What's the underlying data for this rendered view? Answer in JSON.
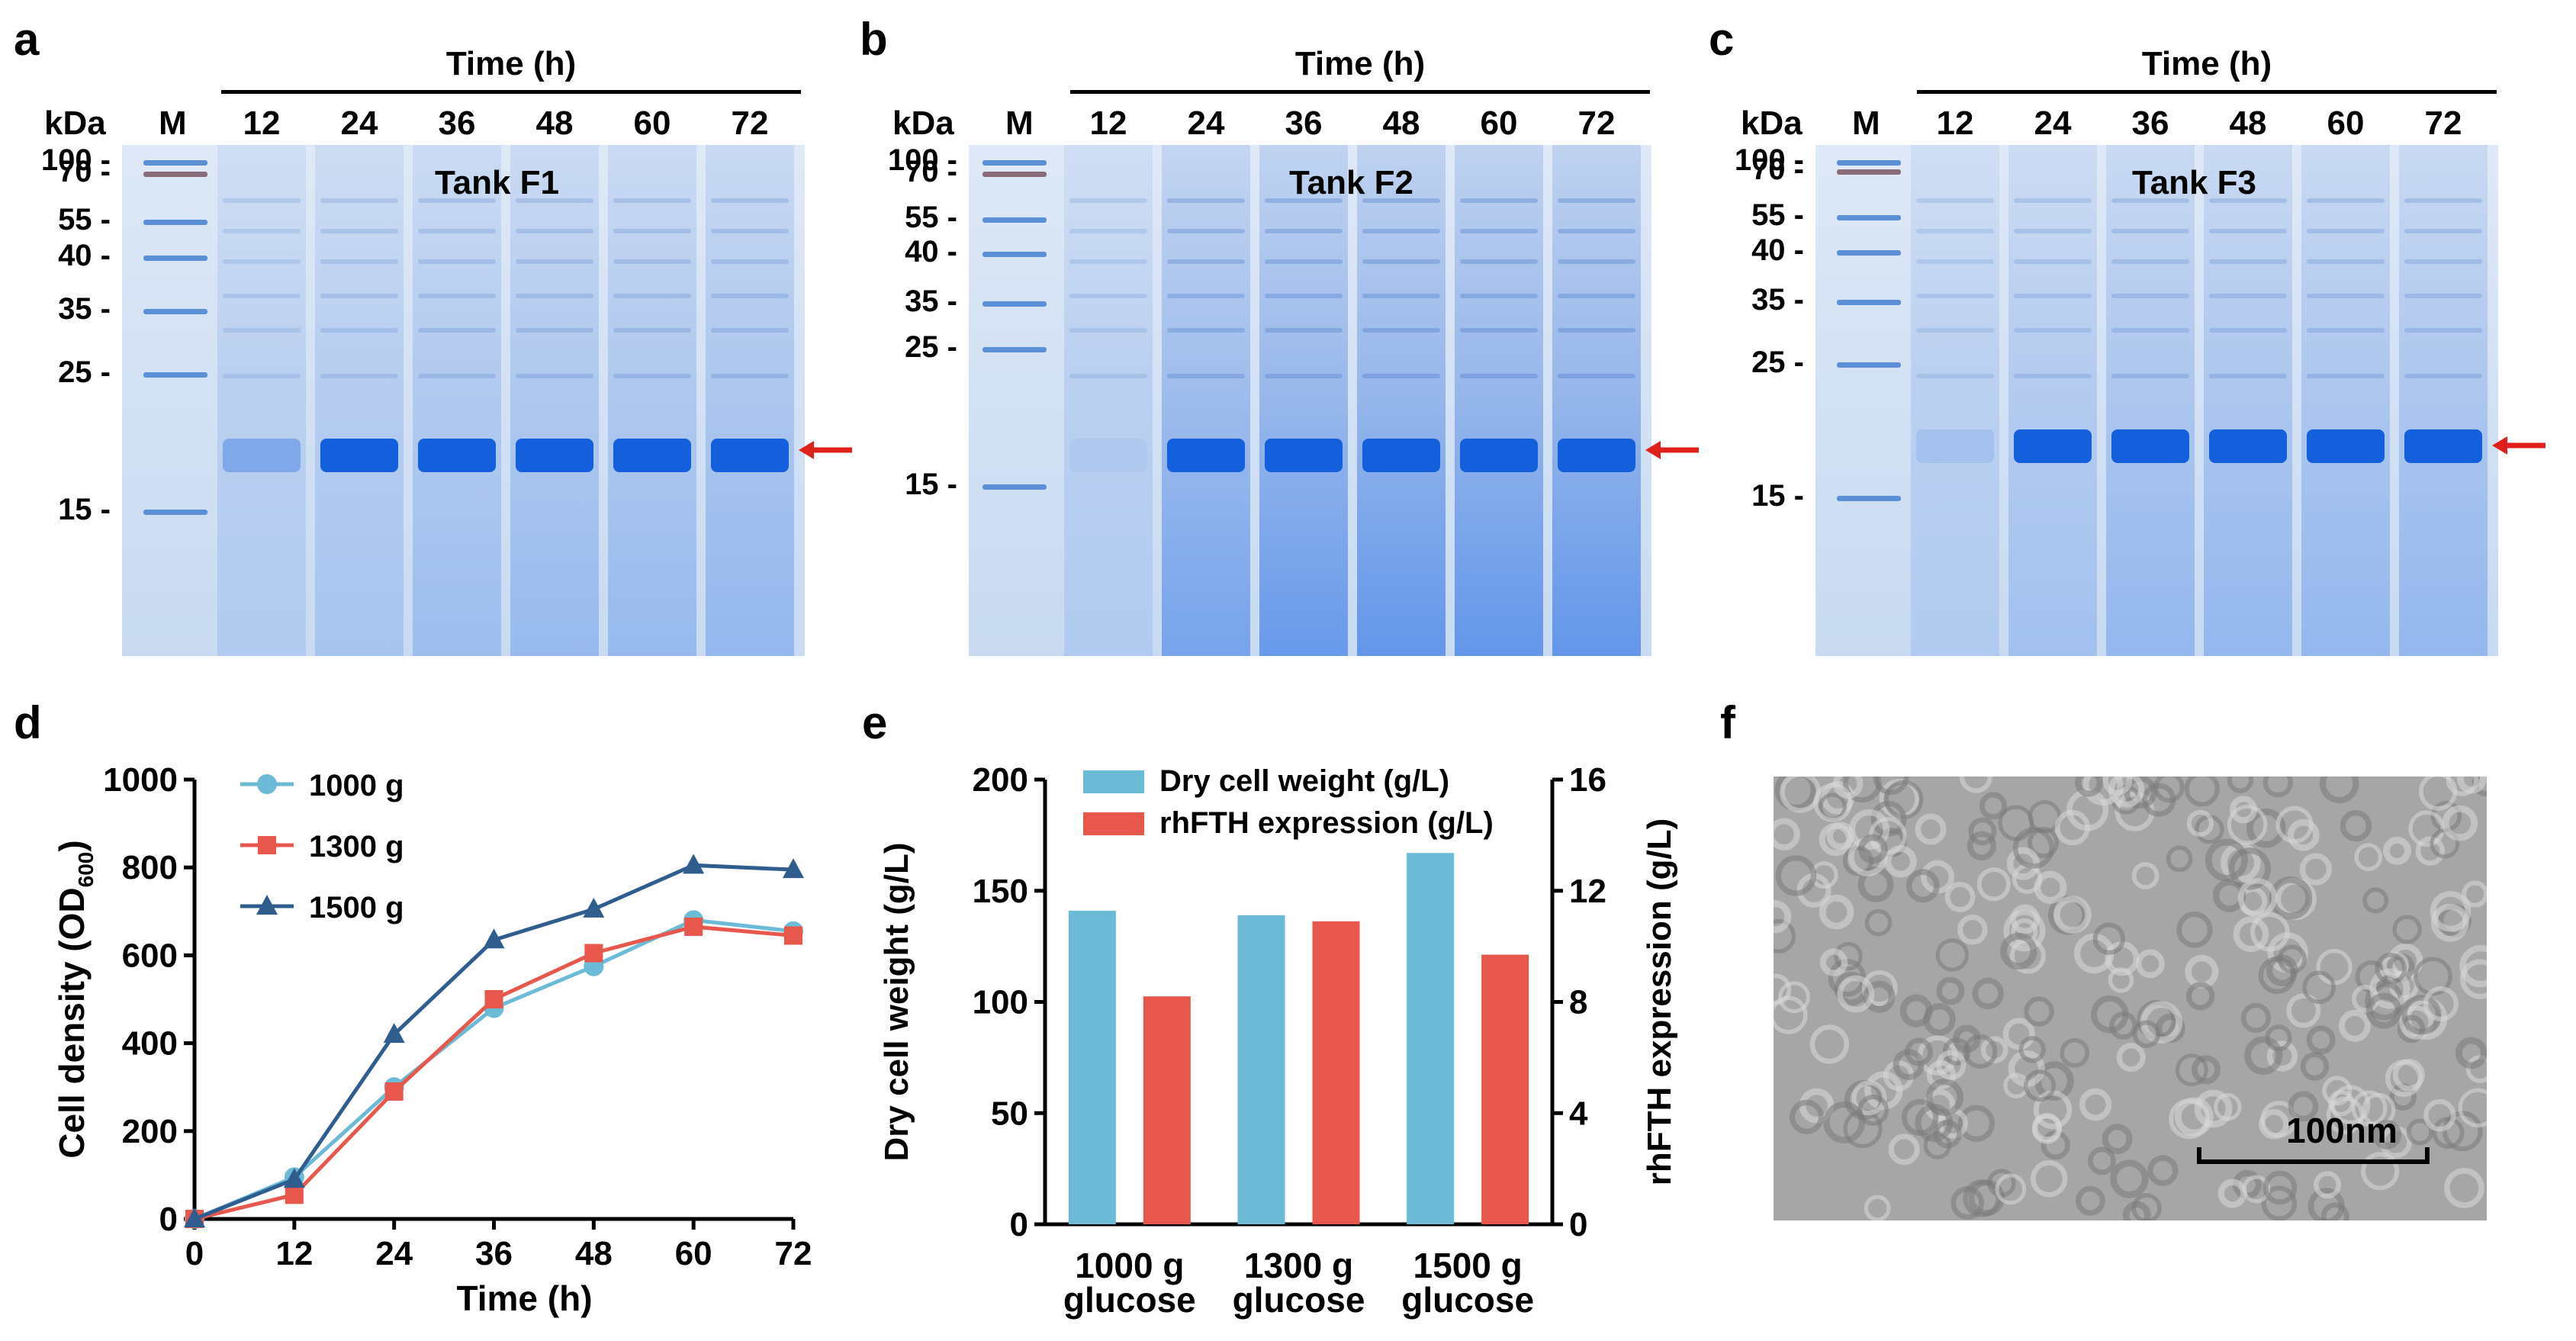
{
  "panels": {
    "a": {
      "letter": "a",
      "tank": "Tank F1",
      "time_title": "Time (h)",
      "kda": "kDa",
      "marker": "M",
      "times": [
        "12",
        "24",
        "36",
        "48",
        "60",
        "72"
      ],
      "mw": [
        "100",
        "70",
        "55",
        "40",
        "35",
        "25",
        "15"
      ]
    },
    "b": {
      "letter": "b",
      "tank": "Tank F2",
      "time_title": "Time (h)",
      "kda": "kDa",
      "marker": "M",
      "times": [
        "12",
        "24",
        "36",
        "48",
        "60",
        "72"
      ],
      "mw": [
        "100",
        "70",
        "55",
        "40",
        "35",
        "25",
        "15"
      ]
    },
    "c": {
      "letter": "c",
      "tank": "Tank F3",
      "time_title": "Time (h)",
      "kda": "kDa",
      "marker": "M",
      "times": [
        "12",
        "24",
        "36",
        "48",
        "60",
        "72"
      ],
      "mw": [
        "100",
        "70",
        "55",
        "40",
        "35",
        "25",
        "15"
      ]
    },
    "d": {
      "letter": "d"
    },
    "e": {
      "letter": "e"
    },
    "f": {
      "letter": "f",
      "scale_label": "100nm"
    }
  },
  "colors": {
    "blue": "#6bbbd6",
    "red": "#e8574c",
    "navy": "#2e5d8e",
    "arrow": "#e0201b"
  },
  "chart_data": [
    {
      "type": "line",
      "panel": "d",
      "xlabel": "Time (h)",
      "ylabel_main": "Cell density (OD",
      "ylabel_sub": "600",
      "ylabel_end": ")",
      "x": [
        0,
        12,
        24,
        36,
        48,
        60,
        72
      ],
      "xticks": [
        "0",
        "12",
        "24",
        "36",
        "48",
        "60",
        "72"
      ],
      "yticks": [
        "0",
        "200",
        "400",
        "600",
        "800",
        "1000"
      ],
      "xlim": [
        0,
        72
      ],
      "ylim": [
        0,
        1000
      ],
      "legend_position": "top-left",
      "series": [
        {
          "name": "1000 g",
          "marker": "circle",
          "color": "#6bbbd6",
          "values": [
            0,
            95,
            300,
            480,
            575,
            680,
            655
          ]
        },
        {
          "name": "1300 g",
          "marker": "square",
          "color": "#e8574c",
          "values": [
            0,
            55,
            290,
            500,
            605,
            665,
            645
          ]
        },
        {
          "name": "1500 g",
          "marker": "triangle",
          "color": "#2e5d8e",
          "values": [
            0,
            90,
            420,
            635,
            705,
            805,
            795
          ]
        }
      ]
    },
    {
      "type": "bar",
      "panel": "e",
      "categories": [
        [
          "1000 g",
          "glucose"
        ],
        [
          "1300 g",
          "glucose"
        ],
        [
          "1500 g",
          "glucose"
        ]
      ],
      "ylabel_left": "Dry cell weight (g/L)",
      "ylabel_right": "rhFTH expression (g/L)",
      "ylim_left": [
        0,
        200
      ],
      "ylim_right": [
        0,
        16
      ],
      "yticks_left": [
        "0",
        "50",
        "100",
        "150",
        "200"
      ],
      "yticks_right": [
        "0",
        "4",
        "8",
        "12",
        "16"
      ],
      "legend_position": "top",
      "series": [
        {
          "name": "Dry cell weight (g/L)",
          "axis": "left",
          "color": "#6bbbd6",
          "values": [
            141,
            139,
            167
          ]
        },
        {
          "name": "rhFTH expression (g/L)",
          "axis": "right",
          "color": "#e8574c",
          "values": [
            8.2,
            10.9,
            9.7
          ]
        }
      ]
    }
  ]
}
